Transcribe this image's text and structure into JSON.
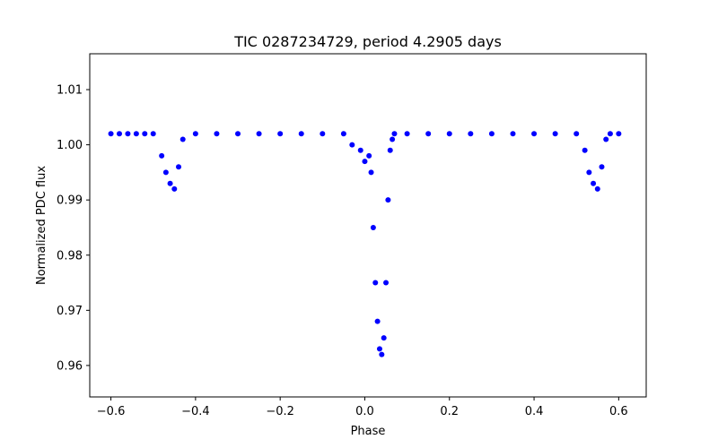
{
  "chart_data": {
    "type": "scatter",
    "title": "TIC 0287234729, period 4.2905 days",
    "xlabel": "Phase",
    "ylabel": "Normalized PDC flux",
    "xlim": [
      -0.65,
      0.665
    ],
    "ylim": [
      0.9543,
      1.0165
    ],
    "xticks": [
      -0.6,
      -0.4,
      -0.2,
      0.0,
      0.2,
      0.4,
      0.6
    ],
    "xtick_labels": [
      "−0.6",
      "−0.4",
      "−0.2",
      "0.0",
      "0.2",
      "0.4",
      "0.6"
    ],
    "yticks": [
      0.96,
      0.97,
      0.98,
      0.99,
      1.0,
      1.01
    ],
    "ytick_labels": [
      "0.96",
      "0.97",
      "0.98",
      "0.99",
      "1.00",
      "1.01"
    ],
    "grid": false,
    "legend": "none",
    "marker_color": "#0000ff",
    "series": [
      {
        "x": [
          -0.6,
          -0.58,
          -0.56,
          -0.54,
          -0.52,
          -0.5,
          -0.48,
          -0.47,
          -0.46,
          -0.45,
          -0.44,
          -0.43,
          -0.4,
          -0.35,
          -0.3,
          -0.25,
          -0.2,
          -0.15,
          -0.1,
          -0.05,
          -0.03,
          -0.01,
          0.0,
          0.01,
          0.015,
          0.02,
          0.025,
          0.03,
          0.035,
          0.04,
          0.045,
          0.05,
          0.055,
          0.06,
          0.065,
          0.07,
          0.1,
          0.15,
          0.2,
          0.25,
          0.3,
          0.35,
          0.4,
          0.45,
          0.5,
          0.52,
          0.53,
          0.54,
          0.55,
          0.56,
          0.57,
          0.58,
          0.6
        ],
        "y": [
          1.002,
          1.002,
          1.002,
          1.002,
          1.002,
          1.002,
          0.998,
          0.995,
          0.993,
          0.992,
          0.996,
          1.001,
          1.002,
          1.002,
          1.002,
          1.002,
          1.002,
          1.002,
          1.002,
          1.002,
          1.0,
          0.999,
          0.997,
          0.998,
          0.995,
          0.985,
          0.975,
          0.968,
          0.963,
          0.962,
          0.965,
          0.975,
          0.99,
          0.999,
          1.001,
          1.002,
          1.002,
          1.002,
          1.002,
          1.002,
          1.002,
          1.002,
          1.002,
          1.002,
          1.002,
          0.999,
          0.995,
          0.993,
          0.992,
          0.996,
          1.001,
          1.002,
          1.002
        ]
      }
    ]
  }
}
